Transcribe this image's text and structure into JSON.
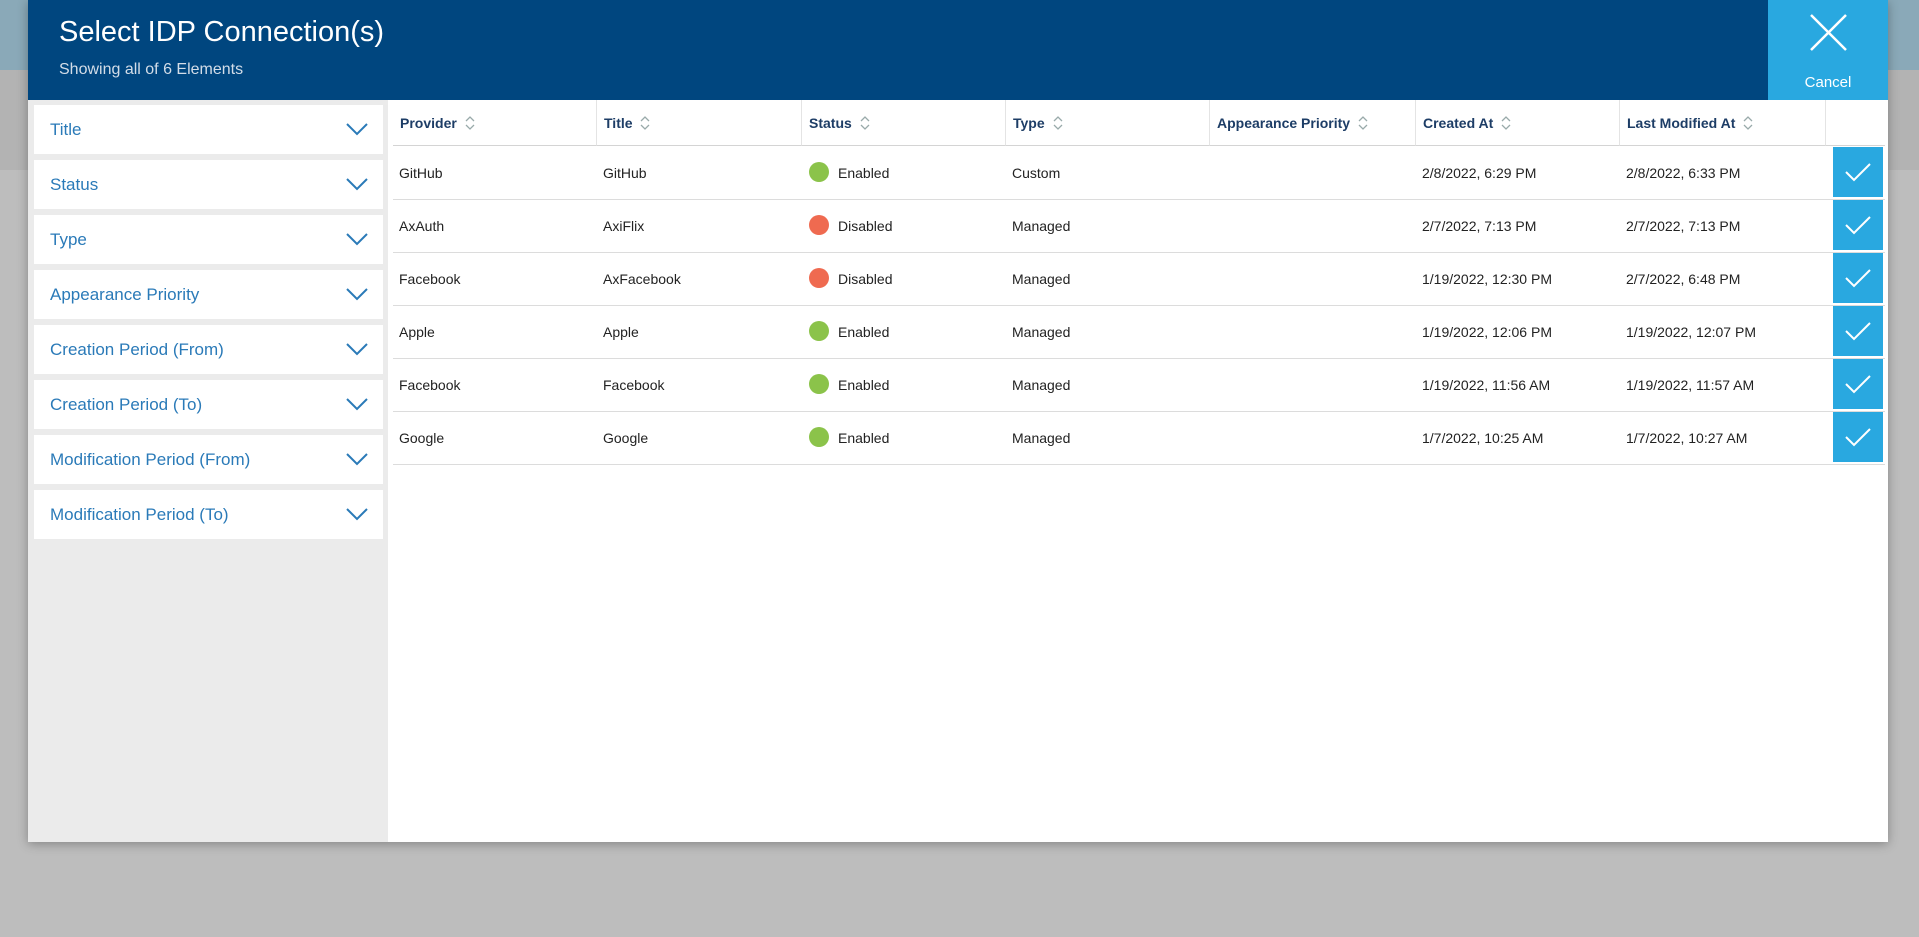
{
  "header": {
    "title": "Select IDP Connection(s)",
    "subtitle": "Showing all of 6 Elements",
    "cancel": "Cancel"
  },
  "filters": [
    "Title",
    "Status",
    "Type",
    "Appearance Priority",
    "Creation Period (From)",
    "Creation Period (To)",
    "Modification Period (From)",
    "Modification Period (To)"
  ],
  "table": {
    "columns": [
      "Provider",
      "Title",
      "Status",
      "Type",
      "Appearance Priority",
      "Created At",
      "Last Modified At"
    ],
    "rows": [
      {
        "cells": [
          "GitHub",
          "GitHub",
          "Enabled",
          "Custom",
          "",
          "2/8/2022, 6:29 PM",
          "2/8/2022, 6:33 PM"
        ],
        "status_color": "#8bc34a"
      },
      {
        "cells": [
          "AxAuth",
          "AxiFlix",
          "Disabled",
          "Managed",
          "",
          "2/7/2022, 7:13 PM",
          "2/7/2022, 7:13 PM"
        ],
        "status_color": "#ef6a50"
      },
      {
        "cells": [
          "Facebook",
          "AxFacebook",
          "Disabled",
          "Managed",
          "",
          "1/19/2022, 12:30 PM",
          "2/7/2022, 6:48 PM"
        ],
        "status_color": "#ef6a50"
      },
      {
        "cells": [
          "Apple",
          "Apple",
          "Enabled",
          "Managed",
          "",
          "1/19/2022, 12:06 PM",
          "1/19/2022, 12:07 PM"
        ],
        "status_color": "#8bc34a"
      },
      {
        "cells": [
          "Facebook",
          "Facebook",
          "Enabled",
          "Managed",
          "",
          "1/19/2022, 11:56 AM",
          "1/19/2022, 11:57 AM"
        ],
        "status_color": "#8bc34a"
      },
      {
        "cells": [
          "Google",
          "Google",
          "Enabled",
          "Managed",
          "",
          "1/7/2022, 10:25 AM",
          "1/7/2022, 10:27 AM"
        ],
        "status_color": "#8bc34a"
      }
    ]
  }
}
